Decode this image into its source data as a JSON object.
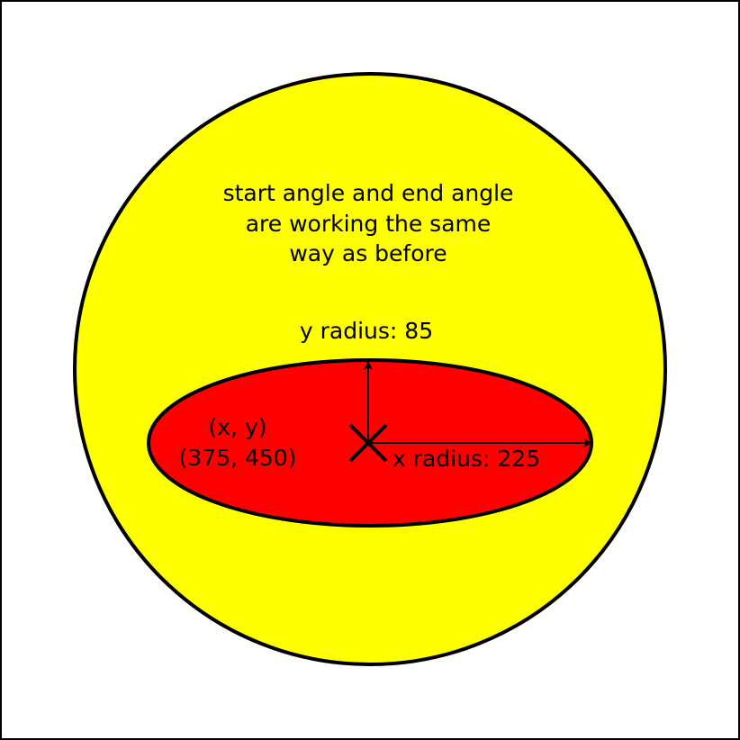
{
  "description_lines": [
    "start angle and end angle",
    "are working the same",
    "way as before"
  ],
  "y_radius_label": "y radius: 85",
  "x_radius_label": "x radius: 225",
  "center_label_line1": "(x, y)",
  "center_label_line2": "(375, 450)",
  "colors": {
    "outer_circle_fill": "#ffff00",
    "ellipse_fill": "#ff0000",
    "stroke": "#000000",
    "background": "#ffffff"
  }
}
